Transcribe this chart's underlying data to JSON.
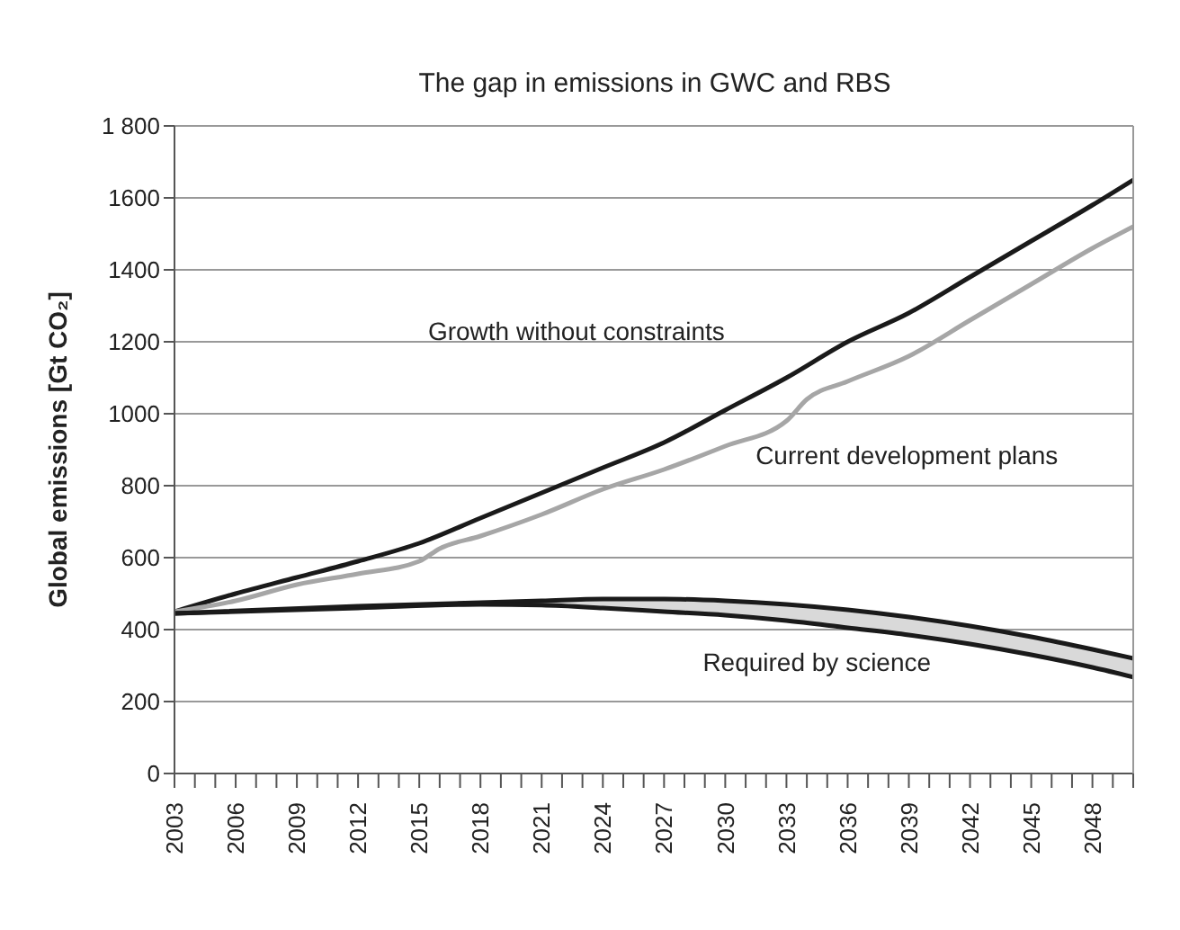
{
  "chart_data": {
    "type": "line",
    "title": "The gap in emissions in GWC and RBS",
    "ylabel": "Global emissions [Gt CO₂]",
    "xlim": [
      2003,
      2050
    ],
    "xticks": [
      2003,
      {
        "value": 2004,
        "label": null
      },
      {
        "value": 2005,
        "label": null
      },
      2006,
      {
        "value": 2007,
        "label": null
      },
      {
        "value": 2008,
        "label": null
      },
      2009,
      {
        "value": 2010,
        "label": null
      },
      {
        "value": 2011,
        "label": null
      },
      2012,
      {
        "value": 2013,
        "label": null
      },
      {
        "value": 2014,
        "label": null
      },
      2015,
      {
        "value": 2016,
        "label": null
      },
      {
        "value": 2017,
        "label": null
      },
      2018,
      {
        "value": 2019,
        "label": null
      },
      {
        "value": 2020,
        "label": null
      },
      2021,
      {
        "value": 2022,
        "label": null
      },
      {
        "value": 2023,
        "label": null
      },
      2024,
      {
        "value": 2025,
        "label": null
      },
      {
        "value": 2026,
        "label": null
      },
      2027,
      {
        "value": 2028,
        "label": null
      },
      {
        "value": 2029,
        "label": null
      },
      2030,
      {
        "value": 2031,
        "label": null
      },
      {
        "value": 2032,
        "label": null
      },
      2033,
      {
        "value": 2034,
        "label": null
      },
      {
        "value": 2035,
        "label": null
      },
      2036,
      {
        "value": 2037,
        "label": null
      },
      {
        "value": 2038,
        "label": null
      },
      2039,
      {
        "value": 2040,
        "label": null
      },
      {
        "value": 2041,
        "label": null
      },
      2042,
      {
        "value": 2043,
        "label": null
      },
      {
        "value": 2044,
        "label": null
      },
      2045,
      {
        "value": 2046,
        "label": null
      },
      {
        "value": 2047,
        "label": null
      },
      2048,
      {
        "value": 2049,
        "label": null
      },
      {
        "value": 2050,
        "label": null
      }
    ],
    "ylim": [
      0,
      1800
    ],
    "yticks": [
      0,
      200,
      400,
      600,
      800,
      1000,
      1200,
      1400,
      1600,
      {
        "value": 1800,
        "label": "1 800"
      }
    ],
    "grid": "y",
    "marker": "none",
    "line_style": "solid",
    "series": [
      {
        "name": "Growth without constraints",
        "color": "#1a1a1a",
        "x": [
          2003,
          2006,
          2009,
          2012,
          2015,
          2018,
          2021,
          2024,
          2027,
          2030,
          2033,
          2036,
          2039,
          2042,
          2045,
          2048,
          2050
        ],
        "values": [
          450,
          500,
          545,
          590,
          640,
          710,
          780,
          850,
          920,
          1010,
          1100,
          1200,
          1280,
          1380,
          1480,
          1580,
          1650
        ]
      },
      {
        "name": "Current development plans",
        "color": "#a6a6a6",
        "x": [
          2003,
          2006,
          2009,
          2012,
          2015,
          2016,
          2018,
          2021,
          2024,
          2027,
          2030,
          2033,
          2034,
          2036,
          2039,
          2042,
          2045,
          2048,
          2050
        ],
        "values": [
          450,
          480,
          525,
          555,
          590,
          625,
          660,
          720,
          790,
          845,
          910,
          980,
          1040,
          1090,
          1160,
          1260,
          1360,
          1460,
          1520
        ]
      },
      {
        "name": "Required by science",
        "color": "#1a1a1a",
        "x": [
          2003,
          2012,
          2018,
          2021,
          2024,
          2027,
          2030,
          2033,
          2036,
          2039,
          2042,
          2045,
          2048,
          2050
        ],
        "values": [
          445,
          465,
          475,
          480,
          485,
          485,
          480,
          470,
          455,
          435,
          410,
          380,
          345,
          320
        ]
      },
      {
        "color": "#1a1a1a",
        "x": [
          2003,
          2012,
          2018,
          2021,
          2024,
          2027,
          2030,
          2033,
          2036,
          2039,
          2042,
          2045,
          2048,
          2050
        ],
        "values": [
          445,
          460,
          470,
          468,
          460,
          450,
          440,
          425,
          405,
          385,
          360,
          330,
          295,
          268
        ],
        "lower": [
          445,
          460,
          470,
          468,
          460,
          450,
          440,
          425,
          405,
          385,
          360,
          330,
          295,
          268
        ],
        "upper": [
          445,
          465,
          475,
          480,
          485,
          485,
          480,
          470,
          455,
          435,
          410,
          380,
          345,
          320
        ]
      }
    ]
  }
}
